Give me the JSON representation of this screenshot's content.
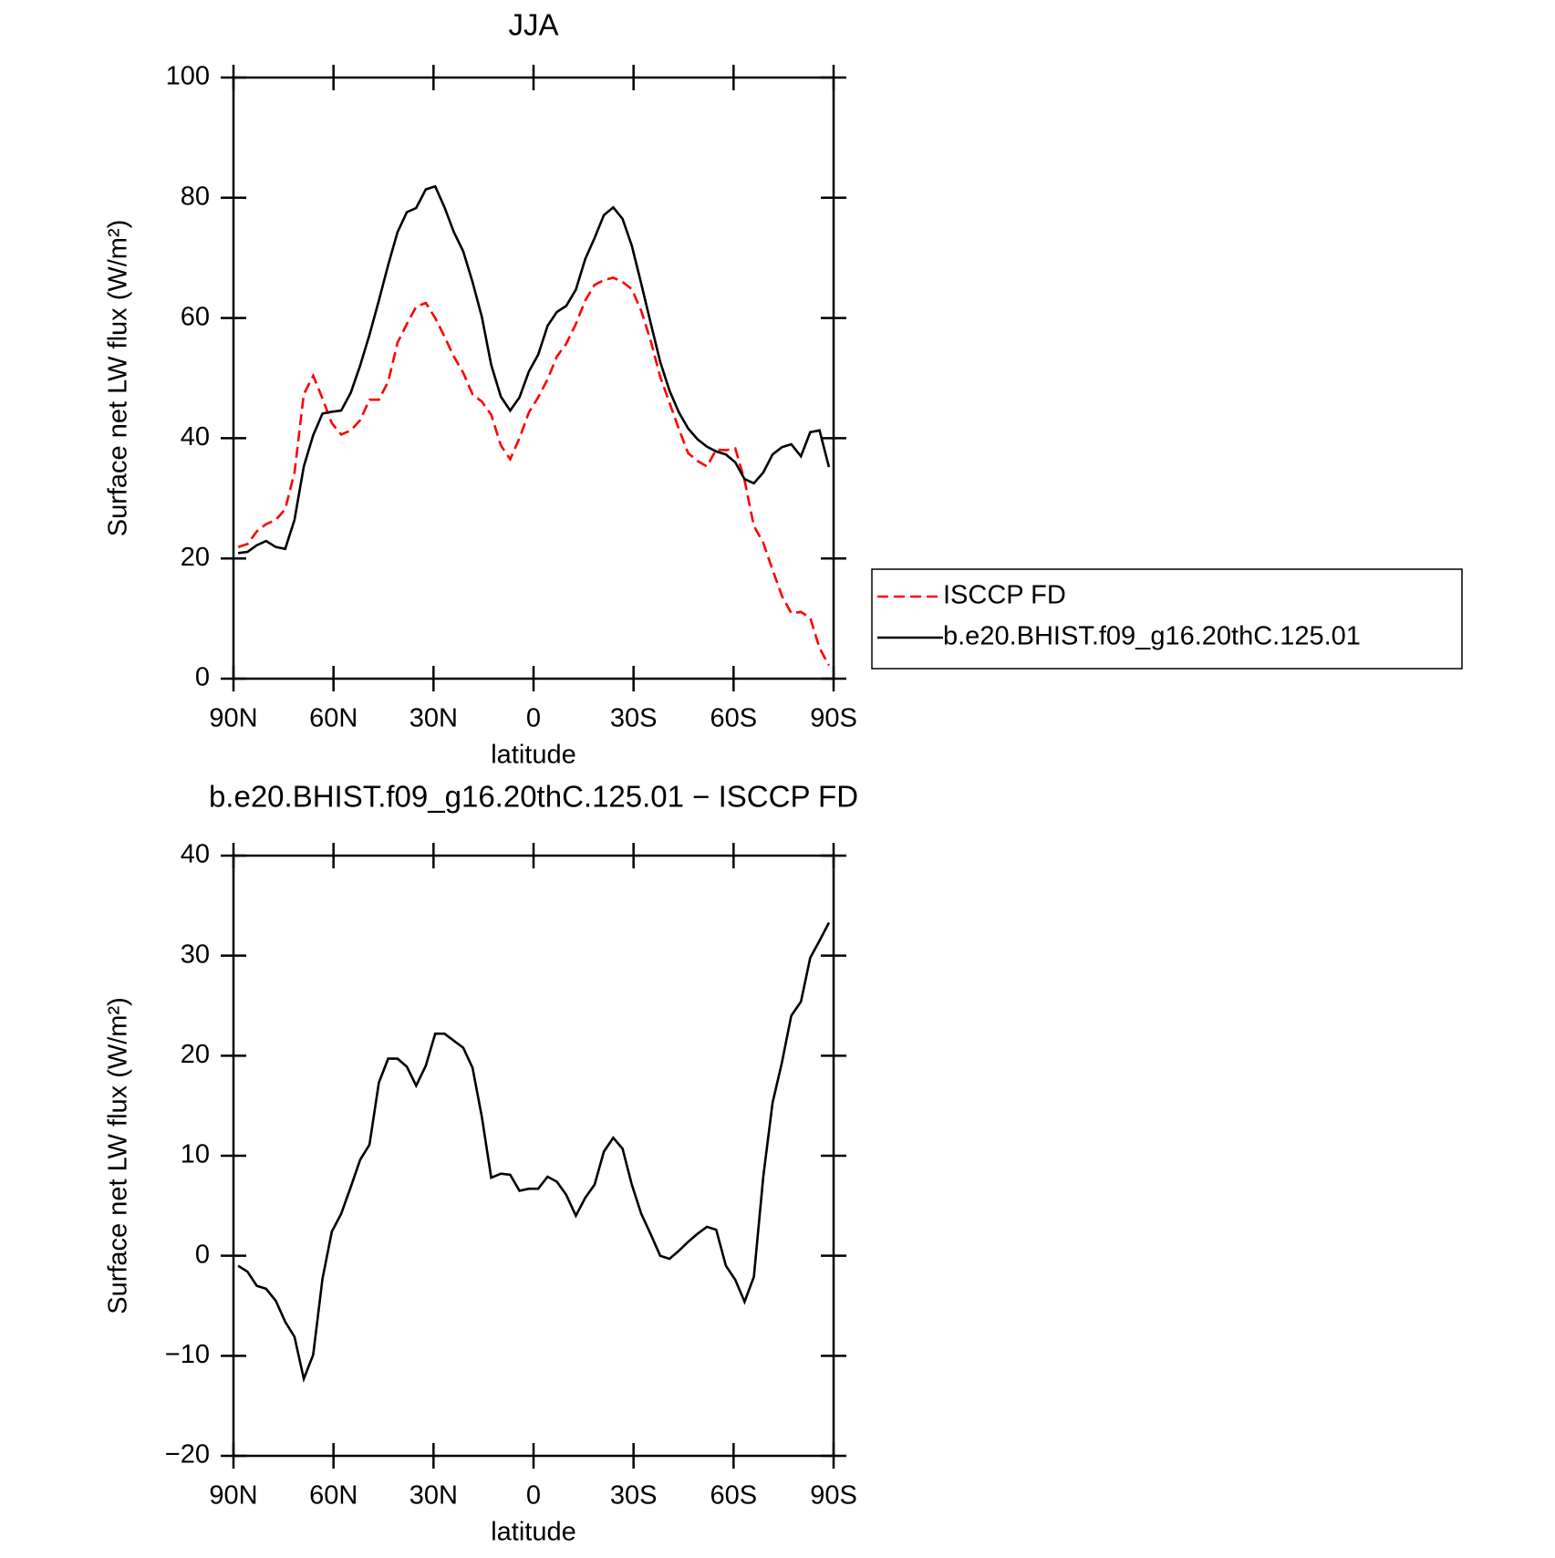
{
  "chart_data": [
    {
      "type": "line",
      "title": "JJA",
      "xlabel": "latitude",
      "ylabel": "Surface net LW flux (W/m²)",
      "xlim": [
        90,
        -90
      ],
      "xticks": [
        {
          "value": 90,
          "label": "90N"
        },
        {
          "value": 60,
          "label": "60N"
        },
        {
          "value": 30,
          "label": "30N"
        },
        0,
        {
          "value": -30,
          "label": "30S"
        },
        {
          "value": -60,
          "label": "60S"
        },
        {
          "value": -90,
          "label": "90S"
        }
      ],
      "ylim": [
        0,
        100
      ],
      "yticks": [
        0,
        20,
        40,
        60,
        80,
        100
      ],
      "legend": "right",
      "x": [
        88.6,
        85.8,
        83.0,
        80.2,
        77.3,
        74.5,
        71.7,
        68.9,
        66.1,
        63.3,
        60.5,
        57.7,
        54.8,
        52.0,
        49.2,
        46.4,
        43.6,
        40.8,
        38.0,
        35.2,
        32.3,
        29.5,
        26.7,
        23.9,
        21.1,
        18.3,
        15.5,
        12.7,
        9.8,
        7.0,
        4.2,
        1.4,
        -1.4,
        -4.2,
        -7.0,
        -9.8,
        -12.7,
        -15.5,
        -18.3,
        -21.1,
        -23.9,
        -26.7,
        -29.5,
        -32.3,
        -35.2,
        -38.0,
        -40.8,
        -43.6,
        -46.4,
        -49.2,
        -52.0,
        -54.8,
        -57.7,
        -60.5,
        -63.3,
        -66.1,
        -68.9,
        -71.7,
        -74.5,
        -77.3,
        -80.2,
        -83.0,
        -85.8,
        -88.6
      ],
      "series": [
        {
          "name": "ISCCP FD",
          "color": "#ff0000",
          "style": "dashed",
          "values": [
            21.9,
            22.4,
            24.5,
            25.7,
            26.4,
            28.2,
            34.3,
            47.3,
            50.4,
            46.6,
            42.5,
            40.6,
            41.3,
            43.0,
            46.4,
            46.4,
            49.4,
            55.9,
            59.0,
            61.9,
            62.5,
            60.0,
            56.9,
            53.6,
            50.9,
            47.3,
            46.1,
            43.9,
            38.8,
            36.5,
            40.0,
            44.3,
            46.8,
            49.8,
            53.6,
            55.7,
            59.0,
            62.9,
            65.5,
            66.3,
            66.7,
            66.0,
            64.8,
            61.2,
            56.1,
            50.2,
            45.9,
            41.5,
            37.5,
            36.2,
            35.3,
            38.1,
            38.0,
            38.3,
            33.0,
            25.4,
            22.6,
            18.1,
            13.8,
            10.9,
            11.1,
            10.1,
            5.1,
            2.2
          ]
        },
        {
          "name": "b.e20.BHIST.f09_g16.20thC.125.01",
          "color": "#000000",
          "style": "solid",
          "values": [
            20.9,
            21.1,
            22.2,
            22.9,
            21.9,
            21.6,
            26.4,
            35.3,
            40.5,
            44.1,
            44.4,
            44.6,
            47.6,
            52.1,
            57.2,
            62.9,
            68.8,
            74.3,
            77.6,
            78.3,
            81.4,
            81.9,
            78.4,
            74.3,
            71.1,
            66.0,
            60.2,
            52.2,
            46.9,
            44.6,
            46.8,
            51.1,
            53.9,
            58.7,
            61.0,
            62.0,
            64.7,
            69.8,
            73.3,
            77.1,
            78.4,
            76.5,
            72.0,
            65.7,
            59.0,
            52.7,
            47.9,
            44.3,
            41.6,
            39.8,
            38.6,
            37.8,
            37.3,
            36.0,
            33.2,
            32.5,
            34.3,
            37.3,
            38.5,
            39.0,
            37.0,
            41.0,
            41.3,
            35.2
          ]
        }
      ]
    },
    {
      "type": "line",
      "title": "b.e20.BHIST.f09_g16.20thC.125.01 − ISCCP FD",
      "xlabel": "latitude",
      "ylabel": "Surface net LW flux (W/m²)",
      "xlim": [
        90,
        -90
      ],
      "xticks": [
        {
          "value": 90,
          "label": "90N"
        },
        {
          "value": 60,
          "label": "60N"
        },
        {
          "value": 30,
          "label": "30N"
        },
        0,
        {
          "value": -30,
          "label": "30S"
        },
        {
          "value": -60,
          "label": "60S"
        },
        {
          "value": -90,
          "label": "90S"
        }
      ],
      "ylim": [
        -20,
        40
      ],
      "yticks": [
        {
          "value": -20,
          "label": "−20"
        },
        {
          "value": -10,
          "label": "−10"
        },
        0,
        10,
        20,
        30,
        40
      ],
      "x": [
        88.6,
        85.8,
        83.0,
        80.2,
        77.3,
        74.5,
        71.7,
        68.9,
        66.1,
        63.3,
        60.5,
        57.7,
        54.8,
        52.0,
        49.2,
        46.4,
        43.6,
        40.8,
        38.0,
        35.2,
        32.3,
        29.5,
        26.7,
        23.9,
        21.1,
        18.3,
        15.5,
        12.7,
        9.8,
        7.0,
        4.2,
        1.4,
        -1.4,
        -4.2,
        -7.0,
        -9.8,
        -12.7,
        -15.5,
        -18.3,
        -21.1,
        -23.9,
        -26.7,
        -29.5,
        -32.3,
        -35.2,
        -38.0,
        -40.8,
        -43.6,
        -46.4,
        -49.2,
        -52.0,
        -54.8,
        -57.7,
        -60.5,
        -63.3,
        -66.1,
        -68.9,
        -71.7,
        -74.5,
        -77.3,
        -80.2,
        -83.0,
        -85.8,
        -88.6
      ],
      "series": [
        {
          "color": "#000000",
          "style": "solid",
          "values": [
            -1.0,
            -1.6,
            -3.0,
            -3.3,
            -4.5,
            -6.6,
            -8.1,
            -12.3,
            -9.9,
            -2.3,
            2.4,
            4.2,
            6.9,
            9.6,
            11.1,
            17.3,
            19.7,
            19.7,
            18.9,
            17.0,
            19.0,
            22.2,
            22.2,
            21.5,
            20.8,
            18.8,
            13.9,
            7.8,
            8.2,
            8.1,
            6.5,
            6.7,
            6.7,
            7.9,
            7.4,
            6.1,
            4.0,
            5.8,
            7.1,
            10.4,
            11.8,
            10.7,
            7.1,
            4.2,
            2.1,
            0.0,
            -0.3,
            0.5,
            1.4,
            2.2,
            2.9,
            2.6,
            -1.0,
            -2.4,
            -4.6,
            -2.1,
            7.9,
            15.3,
            19.3,
            24.0,
            25.4,
            29.8,
            31.5,
            33.3
          ]
        }
      ]
    }
  ]
}
